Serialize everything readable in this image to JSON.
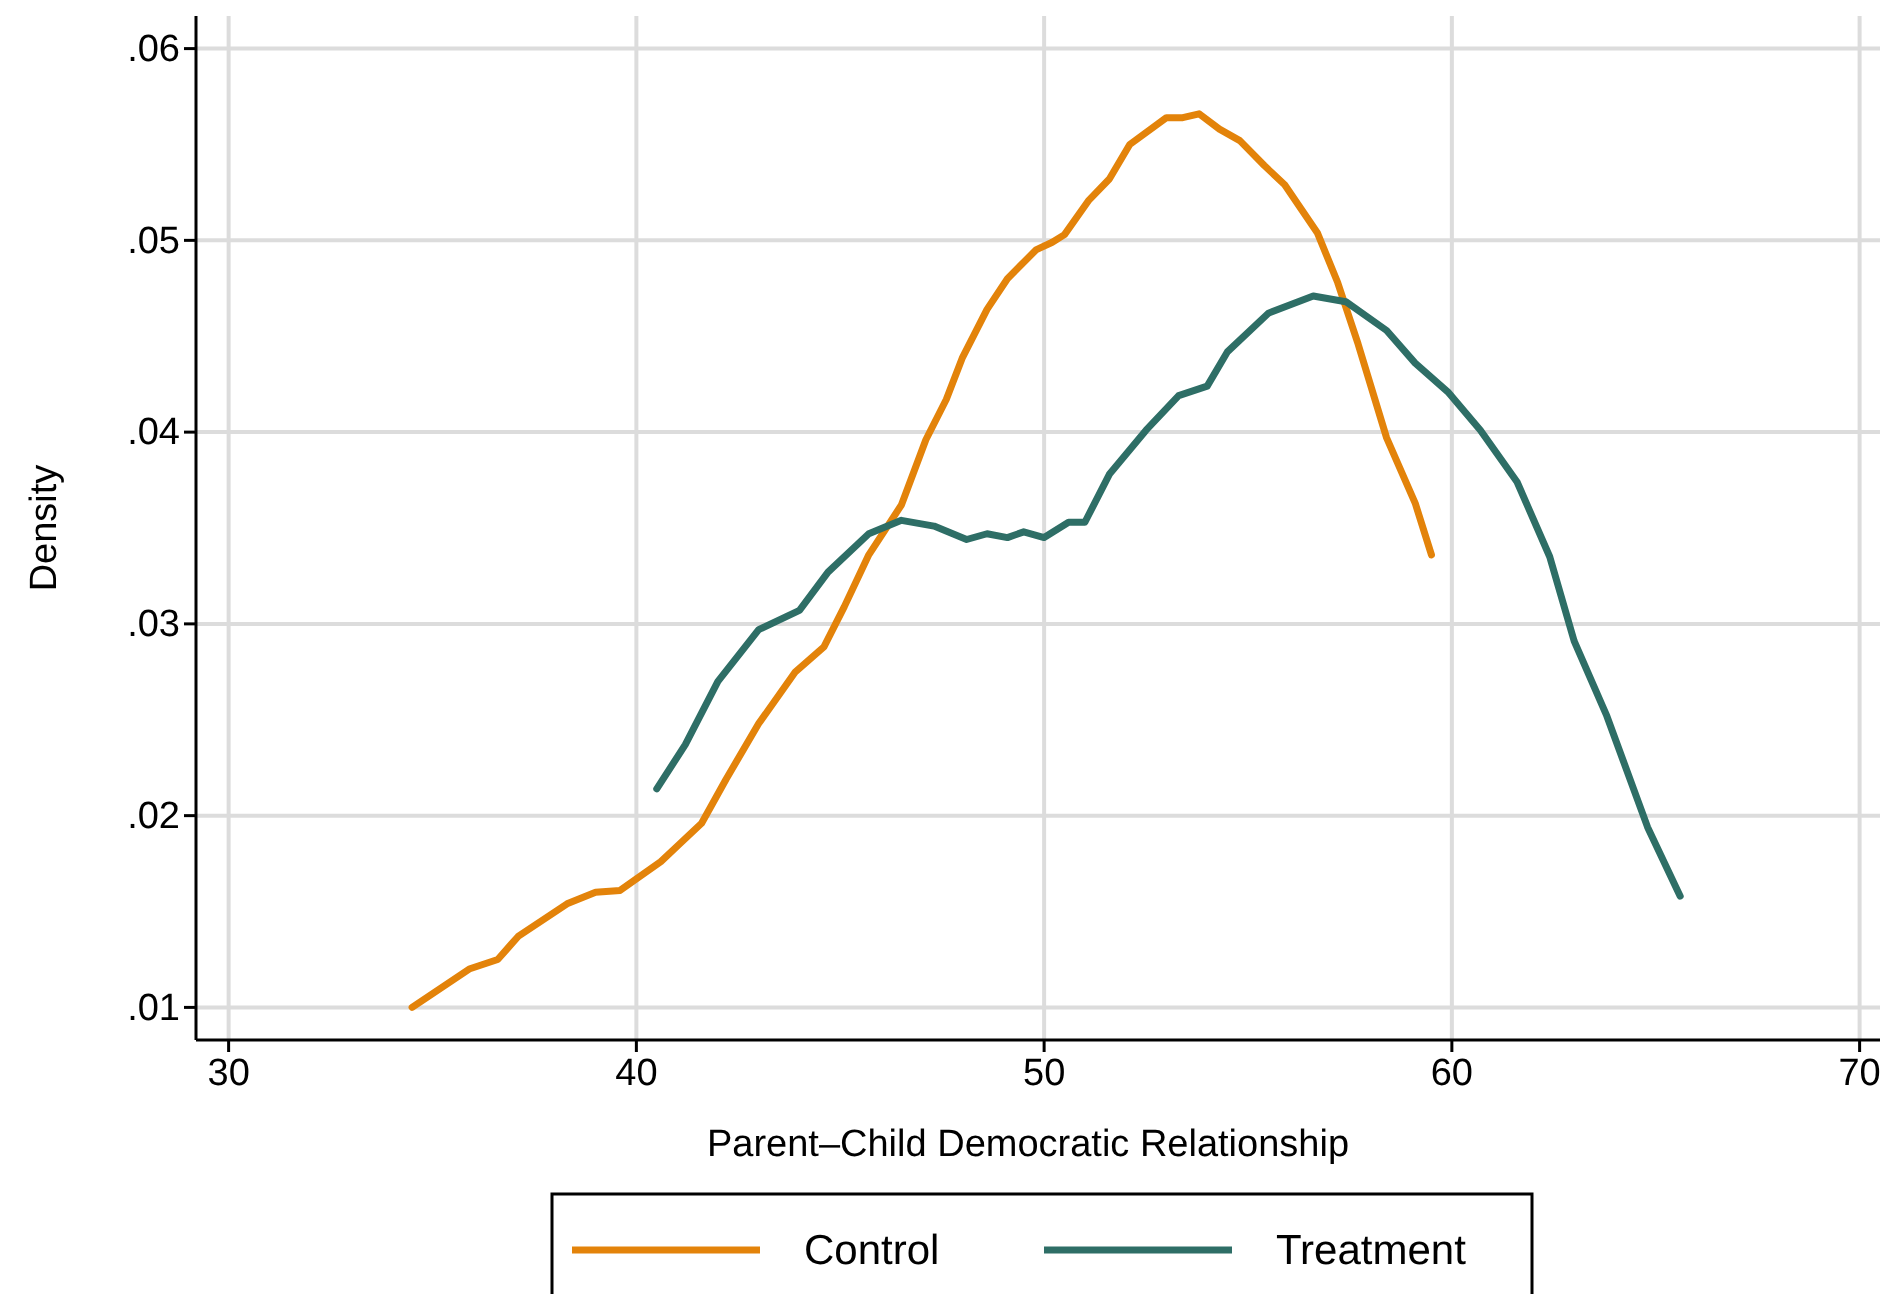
{
  "chart_data": {
    "type": "line",
    "xlabel": "Parent–Child Democratic Relationship",
    "ylabel": "Density",
    "xlim": [
      29.2,
      70.5
    ],
    "ylim": [
      0.0083,
      0.0617
    ],
    "xticks": [
      30,
      40,
      50,
      60,
      70
    ],
    "yticks": [
      {
        "value": 0.01,
        "label": ".01"
      },
      {
        "value": 0.02,
        "label": ".02"
      },
      {
        "value": 0.03,
        "label": ".03"
      },
      {
        "value": 0.04,
        "label": ".04"
      },
      {
        "value": 0.05,
        "label": ".05"
      },
      {
        "value": 0.06,
        "label": ".06"
      }
    ],
    "grid": true,
    "legend": "bottom",
    "line_style": "solid",
    "marker": "none",
    "series": [
      {
        "name": "Control",
        "color": "#e3830a",
        "x": [
          34.5,
          35.9,
          36.6,
          37.1,
          38.3,
          39.0,
          39.6,
          40.0,
          40.6,
          41.0,
          41.6,
          42.2,
          43.0,
          43.9,
          44.6,
          45.1,
          45.7,
          46.5,
          47.1,
          47.6,
          48.0,
          48.6,
          49.1,
          49.8,
          50.2,
          50.5,
          51.1,
          51.6,
          52.1,
          53.0,
          53.4,
          53.8,
          54.3,
          54.8,
          55.4,
          55.9,
          56.7,
          57.2,
          57.7,
          58.4,
          59.1,
          59.5
        ],
        "values": [
          0.01,
          0.012,
          0.0125,
          0.0137,
          0.0154,
          0.016,
          0.0161,
          0.0167,
          0.0176,
          0.0184,
          0.0196,
          0.0219,
          0.0248,
          0.0275,
          0.0288,
          0.0309,
          0.0336,
          0.0362,
          0.0396,
          0.0417,
          0.0439,
          0.0464,
          0.048,
          0.0495,
          0.0499,
          0.0503,
          0.0521,
          0.0532,
          0.055,
          0.0564,
          0.0564,
          0.0566,
          0.0558,
          0.0552,
          0.0539,
          0.0529,
          0.0504,
          0.0478,
          0.0446,
          0.0397,
          0.0363,
          0.0336
        ]
      },
      {
        "name": "Treatment",
        "color": "#2e6e66",
        "x": [
          40.5,
          41.2,
          42.0,
          43.0,
          44.0,
          44.7,
          45.7,
          46.5,
          47.3,
          48.1,
          48.6,
          49.1,
          49.5,
          50.0,
          50.6,
          51.0,
          51.6,
          52.5,
          53.3,
          54.0,
          54.5,
          55.5,
          56.6,
          57.4,
          58.4,
          59.1,
          59.9,
          60.7,
          61.6,
          62.4,
          63.0,
          63.8,
          64.8,
          65.6
        ],
        "values": [
          0.0214,
          0.0237,
          0.027,
          0.0297,
          0.0307,
          0.0327,
          0.0347,
          0.0354,
          0.0351,
          0.0344,
          0.0347,
          0.0345,
          0.0348,
          0.0345,
          0.0353,
          0.0353,
          0.0378,
          0.0401,
          0.0419,
          0.0424,
          0.0442,
          0.0462,
          0.0471,
          0.0468,
          0.0453,
          0.0436,
          0.0421,
          0.0401,
          0.0374,
          0.0335,
          0.0291,
          0.0252,
          0.0194,
          0.0158
        ]
      }
    ]
  }
}
